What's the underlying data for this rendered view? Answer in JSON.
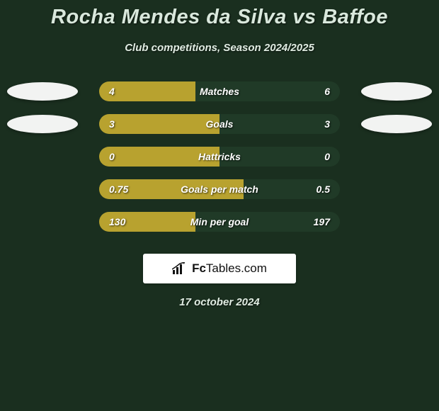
{
  "title": "Rocha Mendes da Silva vs Baffoe",
  "subtitle": "Club competitions, Season 2024/2025",
  "date": "17 october 2024",
  "logo": {
    "brand": "Fc",
    "rest": "Tables.com"
  },
  "colors": {
    "background": "#1a2f1f",
    "bar_left": "#b8a22f",
    "bar_right": "#203a27",
    "ellipse": "#f2f3f2",
    "text": "#ffffff"
  },
  "rows": [
    {
      "label": "Matches",
      "left_value": "4",
      "right_value": "6",
      "left_pct": 40,
      "ellipse_left": true,
      "ellipse_right": true
    },
    {
      "label": "Goals",
      "left_value": "3",
      "right_value": "3",
      "left_pct": 50,
      "ellipse_left": true,
      "ellipse_right": true
    },
    {
      "label": "Hattricks",
      "left_value": "0",
      "right_value": "0",
      "left_pct": 50,
      "ellipse_left": false,
      "ellipse_right": false
    },
    {
      "label": "Goals per match",
      "left_value": "0.75",
      "right_value": "0.5",
      "left_pct": 60,
      "ellipse_left": false,
      "ellipse_right": false
    },
    {
      "label": "Min per goal",
      "left_value": "130",
      "right_value": "197",
      "left_pct": 40,
      "ellipse_left": false,
      "ellipse_right": false
    }
  ]
}
